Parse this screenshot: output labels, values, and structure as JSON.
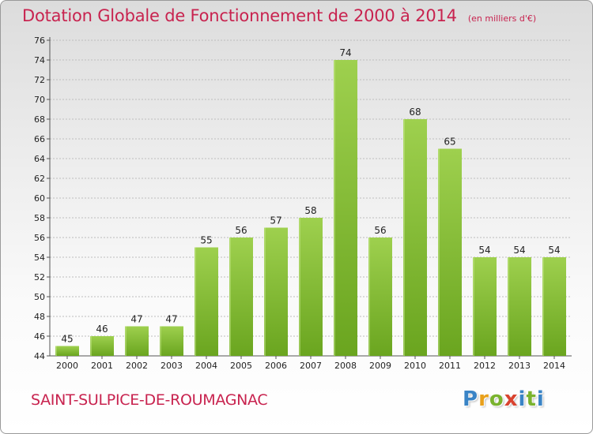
{
  "colors": {
    "title": "#c8234f",
    "bar_top": "#9ed04e",
    "bar_bottom": "#6aa51f",
    "axis_text": "#222222",
    "grid": "#bdbdbd"
  },
  "header": {
    "title": "Dotation Globale de Fonctionnement de 2000 à 2014",
    "unit": "(en milliers d'€)"
  },
  "footer": {
    "commune": "SAINT-SULPICE-DE-ROUMAGNAC",
    "logo_letters": [
      "P",
      "r",
      "o",
      "x",
      "i",
      "t",
      "i"
    ]
  },
  "chart_data": {
    "type": "bar",
    "title": "Dotation Globale de Fonctionnement de 2000 à 2014",
    "unit_label": "(en milliers d'€)",
    "xlabel": "",
    "ylabel": "",
    "categories": [
      "2000",
      "2001",
      "2002",
      "2003",
      "2004",
      "2005",
      "2006",
      "2007",
      "2008",
      "2009",
      "2010",
      "2011",
      "2012",
      "2013",
      "2014"
    ],
    "values": [
      45,
      46,
      47,
      47,
      55,
      56,
      57,
      58,
      74,
      56,
      68,
      65,
      54,
      54,
      54
    ],
    "data_labels": [
      "45",
      "46",
      "47",
      "47",
      "55",
      "56",
      "57",
      "58",
      "74",
      "56",
      "68",
      "65",
      "54",
      "54",
      "54"
    ],
    "ylim": [
      44,
      76
    ],
    "yticks": [
      44,
      46,
      48,
      50,
      52,
      54,
      56,
      58,
      60,
      62,
      64,
      66,
      68,
      70,
      72,
      74,
      76
    ],
    "ytick_labels": [
      "44",
      "46",
      "48",
      "50",
      "52",
      "54",
      "56",
      "58",
      "60",
      "62",
      "64",
      "66",
      "68",
      "70",
      "72",
      "74",
      "76"
    ],
    "grid": "horizontal",
    "legend": "none"
  }
}
